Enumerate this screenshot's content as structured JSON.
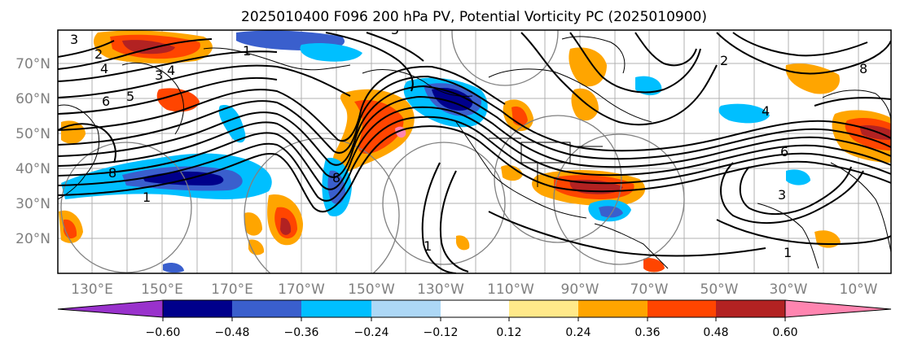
{
  "title": "2025010400 F096 200 hPa PV, Potential Vorticity PC (2025010900)",
  "map": {
    "lat_ticks": [
      "70°N",
      "60°N",
      "50°N",
      "40°N",
      "30°N",
      "20°N"
    ],
    "lon_ticks": [
      "130°E",
      "150°E",
      "170°E",
      "170°W",
      "150°W",
      "130°W",
      "110°W",
      "90°W",
      "70°W",
      "50°W",
      "30°W",
      "10°W"
    ],
    "contour_labels": [
      "3",
      "2",
      "4",
      "3",
      "4",
      "6",
      "5",
      "8",
      "1",
      "2",
      "8",
      "4",
      "1",
      "1",
      "8",
      "1",
      "5",
      "3",
      "6"
    ]
  },
  "colorbar": {
    "ticks": [
      "−0.60",
      "−0.48",
      "−0.36",
      "−0.24",
      "−0.12",
      "0.12",
      "0.24",
      "0.36",
      "0.48",
      "0.60"
    ],
    "colors": {
      "under": "#9932cc",
      "b1": "#00008b",
      "b2": "#3a5fcd",
      "b3": "#00bfff",
      "b4": "#add8f6",
      "b5": "#ffffff",
      "b6": "#ffe98a",
      "b7": "#ffa500",
      "b8": "#ff4500",
      "b9": "#b22222",
      "over": "#ff85b0"
    }
  }
}
